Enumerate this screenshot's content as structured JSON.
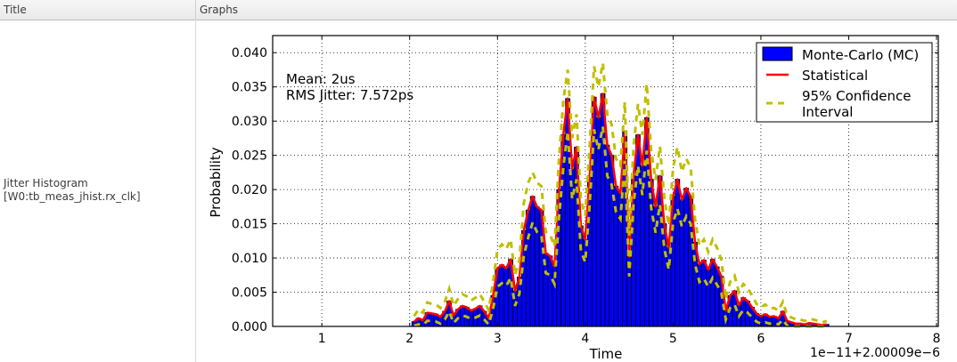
{
  "header": {
    "col_title": "Title",
    "col_graphs": "Graphs"
  },
  "row": {
    "title_line1": "Jitter Histogram",
    "title_line2": "[W0:tb_meas_jhist.rx_clk]"
  },
  "annotation": {
    "mean": "Mean: 2us",
    "rms": "RMS Jitter: 7.572ps"
  },
  "legend": {
    "items": [
      {
        "label": "Monte-Carlo (MC)",
        "type": "bar"
      },
      {
        "label": "Statistical",
        "type": "line"
      },
      {
        "label": "95% Confidence",
        "label2": "Interval",
        "type": "dashed"
      }
    ]
  },
  "colors": {
    "bar": "#0000ff",
    "bar_edge": "#000000",
    "statistical": "#ff0000",
    "confidence": "#bfbf00",
    "grid": "#000000"
  },
  "chart_data": {
    "type": "bar",
    "title": "",
    "xlabel": "Time",
    "ylabel": "Probability",
    "x_offset_label": "1e−11+2.00009e−6",
    "xlim": [
      0.44,
      8.02
    ],
    "ylim": [
      0.0,
      0.0425
    ],
    "xticks": [
      "1",
      "2",
      "3",
      "4",
      "5",
      "6",
      "7",
      "8"
    ],
    "yticks": [
      "0.000",
      "0.005",
      "0.010",
      "0.015",
      "0.020",
      "0.025",
      "0.030",
      "0.035",
      "0.040"
    ],
    "grid": true,
    "legend_position": "upper right",
    "bin_width": 0.05,
    "x": [
      2.05,
      2.1,
      2.15,
      2.2,
      2.25,
      2.3,
      2.35,
      2.4,
      2.45,
      2.5,
      2.55,
      2.6,
      2.65,
      2.7,
      2.75,
      2.8,
      2.85,
      2.9,
      2.95,
      3.0,
      3.05,
      3.1,
      3.15,
      3.2,
      3.25,
      3.3,
      3.35,
      3.4,
      3.45,
      3.5,
      3.55,
      3.6,
      3.65,
      3.7,
      3.75,
      3.8,
      3.85,
      3.9,
      3.95,
      4.0,
      4.05,
      4.1,
      4.15,
      4.2,
      4.25,
      4.3,
      4.35,
      4.4,
      4.45,
      4.5,
      4.55,
      4.6,
      4.65,
      4.7,
      4.75,
      4.8,
      4.85,
      4.9,
      4.95,
      5.0,
      5.05,
      5.1,
      5.15,
      5.2,
      5.25,
      5.3,
      5.35,
      5.4,
      5.45,
      5.5,
      5.55,
      5.6,
      5.65,
      5.7,
      5.75,
      5.8,
      5.85,
      5.9,
      5.95,
      6.0,
      6.05,
      6.1,
      6.15,
      6.2,
      6.25,
      6.3,
      6.35,
      6.4,
      6.45,
      6.5,
      6.55,
      6.6,
      6.65,
      6.7,
      6.75
    ],
    "series": [
      {
        "name": "Monte-Carlo (MC)",
        "values": [
          0.0007,
          0.0012,
          0.0009,
          0.002,
          0.0019,
          0.0018,
          0.0014,
          0.0022,
          0.0037,
          0.0016,
          0.0025,
          0.003,
          0.0028,
          0.0023,
          0.0026,
          0.003,
          0.0022,
          0.0012,
          0.0045,
          0.0085,
          0.009,
          0.0085,
          0.0098,
          0.0052,
          0.0072,
          0.014,
          0.017,
          0.019,
          0.0175,
          0.017,
          0.0107,
          0.0103,
          0.0088,
          0.02,
          0.028,
          0.0333,
          0.023,
          0.0262,
          0.0147,
          0.0127,
          0.022,
          0.0335,
          0.0305,
          0.034,
          0.0265,
          0.025,
          0.0205,
          0.0195,
          0.0285,
          0.0102,
          0.022,
          0.028,
          0.0235,
          0.0305,
          0.0215,
          0.0175,
          0.022,
          0.015,
          0.0115,
          0.019,
          0.0215,
          0.0185,
          0.0202,
          0.019,
          0.0123,
          0.0091,
          0.0097,
          0.0083,
          0.0098,
          0.0087,
          0.0073,
          0.0023,
          0.0045,
          0.0052,
          0.0031,
          0.0042,
          0.0037,
          0.0028,
          0.0019,
          0.0015,
          0.0018,
          0.0014,
          0.0015,
          0.0012,
          0.0022,
          0.0008,
          0.0006,
          0.0004,
          0.0004,
          0.0003,
          0.0005,
          0.0004,
          0.0003,
          0.0002,
          0.0003
        ]
      },
      {
        "name": "Statistical",
        "values": [
          0.0007,
          0.0012,
          0.0009,
          0.002,
          0.0019,
          0.0018,
          0.0014,
          0.0022,
          0.0037,
          0.0016,
          0.0025,
          0.003,
          0.0028,
          0.0023,
          0.0026,
          0.003,
          0.0022,
          0.0012,
          0.0045,
          0.0085,
          0.009,
          0.0085,
          0.0098,
          0.0052,
          0.0072,
          0.014,
          0.017,
          0.019,
          0.0175,
          0.017,
          0.0107,
          0.0103,
          0.0088,
          0.02,
          0.028,
          0.0333,
          0.023,
          0.0262,
          0.0147,
          0.0127,
          0.022,
          0.0335,
          0.0305,
          0.034,
          0.0265,
          0.025,
          0.0205,
          0.0195,
          0.0285,
          0.0102,
          0.022,
          0.028,
          0.0235,
          0.0305,
          0.0215,
          0.0175,
          0.022,
          0.015,
          0.0115,
          0.019,
          0.0215,
          0.0185,
          0.0202,
          0.019,
          0.0123,
          0.0091,
          0.0097,
          0.0083,
          0.0098,
          0.0087,
          0.0073,
          0.0023,
          0.0045,
          0.0052,
          0.0031,
          0.0042,
          0.0037,
          0.0028,
          0.0019,
          0.0015,
          0.0018,
          0.0014,
          0.0015,
          0.0012,
          0.0022,
          0.0008,
          0.0006,
          0.0004,
          0.0004,
          0.0003,
          0.0005,
          0.0004,
          0.0003,
          0.0002,
          0.0003
        ]
      },
      {
        "name": "95% Confidence Interval (upper)",
        "values": [
          0.0015,
          0.0025,
          0.002,
          0.0035,
          0.0033,
          0.0032,
          0.0027,
          0.0036,
          0.0055,
          0.003,
          0.004,
          0.0047,
          0.0044,
          0.0038,
          0.0042,
          0.0047,
          0.0036,
          0.0024,
          0.0065,
          0.0112,
          0.012,
          0.0113,
          0.0127,
          0.0075,
          0.0097,
          0.018,
          0.021,
          0.0225,
          0.021,
          0.0205,
          0.0138,
          0.0134,
          0.0117,
          0.0245,
          0.033,
          0.0375,
          0.0275,
          0.031,
          0.0185,
          0.0162,
          0.0265,
          0.038,
          0.035,
          0.0385,
          0.031,
          0.0295,
          0.0245,
          0.0235,
          0.0328,
          0.0133,
          0.0263,
          0.0325,
          0.028,
          0.0355,
          0.0258,
          0.0214,
          0.0263,
          0.0188,
          0.0148,
          0.0232,
          0.0262,
          0.0226,
          0.0245,
          0.0232,
          0.0157,
          0.0118,
          0.0127,
          0.0109,
          0.0127,
          0.0115,
          0.0097,
          0.004,
          0.0065,
          0.0074,
          0.005,
          0.0062,
          0.0056,
          0.0045,
          0.0033,
          0.0028,
          0.0032,
          0.0026,
          0.0027,
          0.0023,
          0.0036,
          0.0016,
          0.0013,
          0.001,
          0.001,
          0.0008,
          0.0011,
          0.001,
          0.0008,
          0.0006,
          0.0008
        ]
      },
      {
        "name": "95% Confidence Interval (lower)",
        "values": [
          0.0001,
          0.0003,
          0.0002,
          0.0008,
          0.0008,
          0.0007,
          0.0004,
          0.001,
          0.0022,
          0.0005,
          0.0012,
          0.0016,
          0.0014,
          0.0011,
          0.0013,
          0.0016,
          0.001,
          0.0003,
          0.0026,
          0.0058,
          0.0063,
          0.0059,
          0.0071,
          0.003,
          0.0048,
          0.0103,
          0.013,
          0.0152,
          0.0138,
          0.0133,
          0.0078,
          0.0075,
          0.0062,
          0.0158,
          0.0232,
          0.0285,
          0.0186,
          0.0215,
          0.011,
          0.0094,
          0.0178,
          0.0288,
          0.0258,
          0.0292,
          0.022,
          0.0207,
          0.0167,
          0.0157,
          0.0242,
          0.0073,
          0.0178,
          0.0235,
          0.0192,
          0.0257,
          0.0174,
          0.0137,
          0.0178,
          0.0114,
          0.0083,
          0.0152,
          0.0172,
          0.0146,
          0.0161,
          0.015,
          0.0091,
          0.0065,
          0.007,
          0.0058,
          0.0071,
          0.0061,
          0.0049,
          0.001,
          0.0027,
          0.0032,
          0.0015,
          0.0024,
          0.002,
          0.0013,
          0.0007,
          0.0004,
          0.0006,
          0.0004,
          0.0005,
          0.0003,
          0.001,
          0.0001,
          0.0,
          0.0,
          0.0,
          0.0,
          0.0,
          0.0,
          0.0,
          0.0,
          0.0
        ]
      }
    ]
  }
}
